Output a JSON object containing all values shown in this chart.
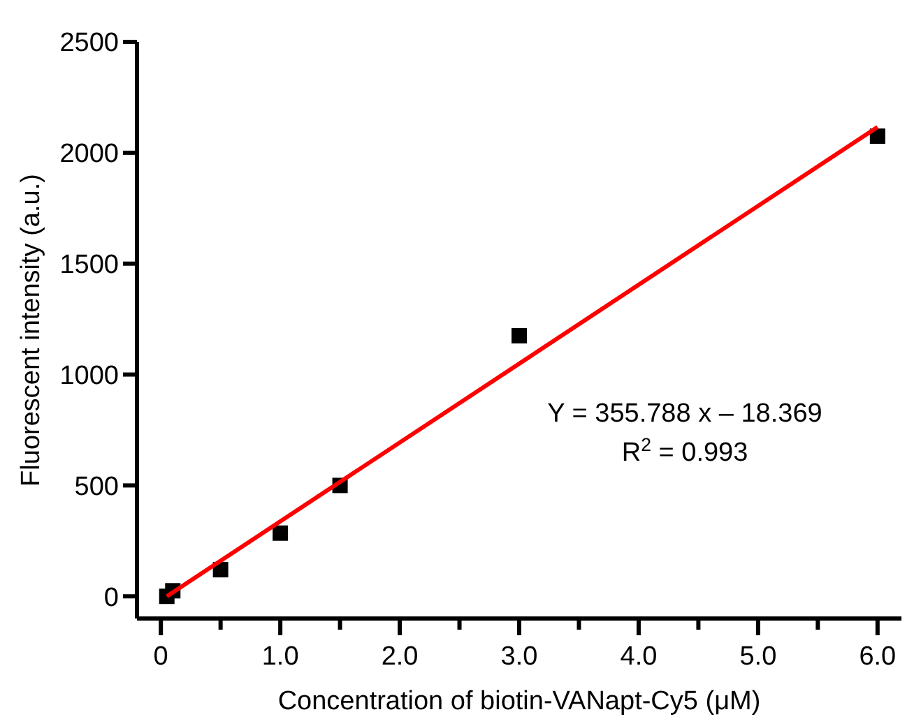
{
  "chart_data": {
    "type": "scatter",
    "xlabel": "Concentration of biotin-VANapt-Cy5 (μM)",
    "ylabel": "Fluorescent intensity (a.u.)",
    "xlim": [
      -0.2,
      6.2
    ],
    "ylim": [
      -100,
      2500
    ],
    "xticks": [
      {
        "value": 0,
        "label": "0"
      },
      {
        "value": 0.5,
        "label": null
      },
      {
        "value": 1,
        "label": "1.0"
      },
      {
        "value": 1.5,
        "label": null
      },
      {
        "value": 2,
        "label": "2.0"
      },
      {
        "value": 2.5,
        "label": null
      },
      {
        "value": 3,
        "label": "3.0"
      },
      {
        "value": 3.5,
        "label": null
      },
      {
        "value": 4,
        "label": "4.0"
      },
      {
        "value": 4.5,
        "label": null
      },
      {
        "value": 5,
        "label": "5.0"
      },
      {
        "value": 5.5,
        "label": null
      },
      {
        "value": 6,
        "label": "6.0"
      }
    ],
    "yticks": [
      0,
      500,
      1000,
      1500,
      2000,
      2500
    ],
    "grid": false,
    "series": [
      {
        "marker": "square",
        "color": "#000000",
        "x": [
          0.05,
          0.1,
          0.5,
          1.0,
          1.5,
          3.0,
          6.0
        ],
        "values": [
          0,
          25,
          120,
          285,
          500,
          1175,
          2075
        ]
      },
      {
        "type": "line",
        "color": "#ff0000",
        "x": [
          0.05,
          6.0
        ],
        "values": [
          0,
          2116
        ]
      }
    ],
    "annotations": [
      "Y = 355.788 x – 18.369",
      "R$^{2}$ = 0.993"
    ]
  }
}
